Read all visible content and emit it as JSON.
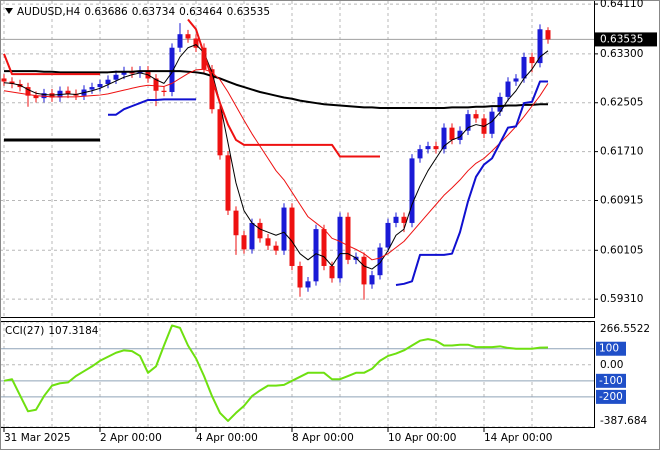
{
  "chart_data": {
    "type": "candlestick",
    "title": "AUDUSD,H4",
    "categories": [
      "31 Mar 2025",
      null,
      null,
      null,
      null,
      null,
      null,
      null,
      null,
      null,
      null,
      null,
      "2 Apr 00:00",
      null,
      null,
      null,
      null,
      null,
      null,
      null,
      null,
      null,
      null,
      null,
      "4 Apr 00:00",
      null,
      null,
      null,
      null,
      null,
      null,
      null,
      null,
      null,
      null,
      null,
      "8 Apr 00:00",
      null,
      null,
      null,
      null,
      null,
      null,
      null,
      null,
      null,
      null,
      null,
      "10 Apr 00:00",
      null,
      null,
      null,
      null,
      null,
      null,
      null,
      null,
      null,
      null,
      null,
      "14 Apr 00:00",
      null,
      null,
      null,
      null,
      null,
      null,
      null,
      null
    ],
    "open": [
      0.629,
      0.6285,
      0.6281,
      0.6276,
      0.6262,
      0.6258,
      0.6266,
      0.6259,
      0.627,
      0.6265,
      0.6262,
      0.6272,
      0.6276,
      0.6281,
      0.6288,
      0.6296,
      0.6302,
      0.6298,
      0.6303,
      0.629,
      0.627,
      0.6268,
      0.634,
      0.6362,
      0.6355,
      0.634,
      0.6305,
      0.624,
      0.6165,
      0.6075,
      0.6035,
      0.6012,
      0.6055,
      0.603,
      0.6018,
      0.601,
      0.608,
      0.5985,
      0.595,
      0.596,
      0.6045,
      0.5985,
      0.5965,
      0.6065,
      0.5995,
      0.6,
      0.5955,
      0.597,
      0.6015,
      0.6055,
      0.6065,
      0.6055,
      0.616,
      0.6175,
      0.618,
      0.6175,
      0.621,
      0.619,
      0.6205,
      0.6232,
      0.6225,
      0.62,
      0.6236,
      0.626,
      0.6285,
      0.629,
      0.6325,
      0.6315,
      0.63686
    ],
    "high": [
      0.6297,
      0.6292,
      0.6288,
      0.6283,
      0.6269,
      0.6273,
      0.6273,
      0.6277,
      0.6277,
      0.6272,
      0.6279,
      0.6283,
      0.6288,
      0.6295,
      0.6303,
      0.6309,
      0.6309,
      0.631,
      0.631,
      0.6297,
      0.6277,
      0.6347,
      0.638,
      0.6369,
      0.6362,
      0.6347,
      0.6312,
      0.6247,
      0.6172,
      0.6082,
      0.6042,
      0.6062,
      0.6062,
      0.6037,
      0.6025,
      0.6087,
      0.6087,
      0.5992,
      0.5967,
      0.6052,
      0.6052,
      0.5992,
      0.6072,
      0.6072,
      0.6007,
      0.6007,
      0.5977,
      0.6022,
      0.6062,
      0.6072,
      0.6072,
      0.6167,
      0.6182,
      0.6187,
      0.6187,
      0.6217,
      0.6217,
      0.6212,
      0.6239,
      0.6239,
      0.6232,
      0.6243,
      0.6267,
      0.6292,
      0.6297,
      0.6332,
      0.6332,
      0.6378,
      0.63734
    ],
    "low": [
      0.6278,
      0.6274,
      0.6269,
      0.6244,
      0.6251,
      0.6251,
      0.6252,
      0.6252,
      0.6258,
      0.6255,
      0.6255,
      0.6265,
      0.6269,
      0.6274,
      0.6281,
      0.6289,
      0.6291,
      0.6291,
      0.6283,
      0.6245,
      0.6261,
      0.6261,
      0.6333,
      0.6348,
      0.6333,
      0.6298,
      0.6233,
      0.6158,
      0.6068,
      0.6003,
      0.6005,
      0.6005,
      0.6023,
      0.6011,
      0.6003,
      0.6003,
      0.5978,
      0.5935,
      0.5943,
      0.5953,
      0.5978,
      0.5958,
      0.5958,
      0.5988,
      0.5988,
      0.593,
      0.5948,
      0.5963,
      0.6008,
      0.6048,
      0.604,
      0.6048,
      0.6153,
      0.6168,
      0.6168,
      0.6168,
      0.6183,
      0.6183,
      0.6198,
      0.6218,
      0.6193,
      0.6193,
      0.6229,
      0.6253,
      0.6278,
      0.6283,
      0.63,
      0.6308,
      0.63464
    ],
    "close": [
      0.6285,
      0.6281,
      0.6276,
      0.6262,
      0.6258,
      0.6266,
      0.6259,
      0.627,
      0.6265,
      0.6262,
      0.6272,
      0.6276,
      0.6281,
      0.6288,
      0.6296,
      0.6302,
      0.6298,
      0.6303,
      0.629,
      0.627,
      0.6268,
      0.634,
      0.6362,
      0.6355,
      0.634,
      0.6305,
      0.624,
      0.6165,
      0.6075,
      0.6035,
      0.6012,
      0.6055,
      0.603,
      0.6018,
      0.601,
      0.608,
      0.5985,
      0.595,
      0.596,
      0.6045,
      0.5985,
      0.5965,
      0.6065,
      0.5995,
      0.6,
      0.5955,
      0.597,
      0.6015,
      0.6055,
      0.6065,
      0.6055,
      0.616,
      0.6175,
      0.618,
      0.6175,
      0.621,
      0.619,
      0.6205,
      0.6232,
      0.6225,
      0.62,
      0.6236,
      0.626,
      0.6285,
      0.629,
      0.6325,
      0.6315,
      0.637,
      0.63535
    ],
    "up_color": "#1a1ad6",
    "down_color": "#ee1111",
    "ylim": [
      0.5902,
      0.6416
    ],
    "yticks": [
      {
        "value": 0.6411,
        "label": "0.64110"
      },
      {
        "value": 0.633,
        "label": "0.63300"
      },
      {
        "value": 0.62505,
        "label": "0.62505"
      },
      {
        "value": 0.6171,
        "label": "0.61710"
      },
      {
        "value": 0.60915,
        "label": "0.60915"
      },
      {
        "value": 0.60105,
        "label": "0.60105"
      },
      {
        "value": 0.5931,
        "label": "0.59310"
      }
    ],
    "grid": true,
    "series": [
      {
        "color": "#000000",
        "style": "thick",
        "values": [
          0.6302,
          0.6302,
          0.6302,
          0.6302,
          0.6302,
          0.6301,
          0.6301,
          0.63,
          0.63,
          0.63,
          0.63,
          0.63,
          0.63,
          0.63,
          0.6301,
          0.6301,
          0.6301,
          0.6302,
          0.6302,
          0.6302,
          0.6302,
          0.6302,
          0.6302,
          0.6301,
          0.63,
          0.6298,
          0.6294,
          0.629,
          0.6285,
          0.628,
          0.6276,
          0.6272,
          0.6268,
          0.6265,
          0.6262,
          0.6259,
          0.6257,
          0.6254,
          0.6252,
          0.625,
          0.6248,
          0.6247,
          0.6246,
          0.6245,
          0.6244,
          0.6243,
          0.6243,
          0.6242,
          0.6242,
          0.6242,
          0.6242,
          0.6242,
          0.6242,
          0.6242,
          0.6242,
          0.6242,
          0.6243,
          0.6243,
          0.6243,
          0.6244,
          0.6244,
          0.6245,
          0.6245,
          0.6246,
          0.6246,
          0.6247,
          0.6247,
          0.6248,
          0.6248
        ]
      },
      {
        "color": "#000000",
        "style": "thin",
        "values": [
          0.6283,
          0.6282,
          0.6279,
          0.6272,
          0.6266,
          0.6264,
          0.6263,
          0.6264,
          0.6265,
          0.6264,
          0.6267,
          0.627,
          0.6274,
          0.628,
          0.6286,
          0.6292,
          0.6296,
          0.6299,
          0.6296,
          0.6288,
          0.6282,
          0.63,
          0.6325,
          0.634,
          0.6345,
          0.6332,
          0.63,
          0.625,
          0.6185,
          0.612,
          0.6075,
          0.6055,
          0.6045,
          0.604,
          0.6035,
          0.604,
          0.6025,
          0.6005,
          0.5995,
          0.6005,
          0.6,
          0.5985,
          0.6005,
          0.6005,
          0.5998,
          0.5985,
          0.598,
          0.599,
          0.601,
          0.6035,
          0.6045,
          0.6085,
          0.6115,
          0.614,
          0.616,
          0.618,
          0.619,
          0.6195,
          0.621,
          0.6215,
          0.6212,
          0.622,
          0.6235,
          0.6255,
          0.627,
          0.629,
          0.6305,
          0.6325,
          0.6335
        ]
      },
      {
        "color": "#ee1111",
        "style": "thin",
        "values": [
          0.627,
          0.6268,
          0.6266,
          0.6264,
          0.6262,
          0.6261,
          0.626,
          0.626,
          0.626,
          0.626,
          0.6261,
          0.6262,
          0.6263,
          0.6265,
          0.6268,
          0.6271,
          0.6274,
          0.6277,
          0.6279,
          0.6278,
          0.6277,
          0.6282,
          0.629,
          0.6298,
          0.6304,
          0.6305,
          0.63,
          0.6288,
          0.6268,
          0.6245,
          0.6222,
          0.62,
          0.618,
          0.616,
          0.614,
          0.6125,
          0.6105,
          0.6085,
          0.6065,
          0.6055,
          0.6045,
          0.603,
          0.6025,
          0.6018,
          0.6012,
          0.6005,
          0.5995,
          0.5998,
          0.6005,
          0.6015,
          0.6025,
          0.604,
          0.6055,
          0.607,
          0.6085,
          0.61,
          0.6112,
          0.6125,
          0.614,
          0.6152,
          0.616,
          0.6172,
          0.6185,
          0.6198,
          0.6212,
          0.6228,
          0.6245,
          0.6262,
          0.6282
        ]
      },
      {
        "color": "#ee1111",
        "style": "thick",
        "values": [
          0.633,
          0.6297,
          0.6297,
          0.6297,
          0.6297,
          0.6297,
          0.6297,
          0.6297,
          0.6297,
          0.6297,
          0.6297,
          0.6297,
          0.6297,
          null,
          null,
          null,
          null,
          null,
          null,
          null,
          null,
          null,
          null,
          0.6386,
          0.637,
          0.633,
          0.629,
          0.625,
          0.6215,
          0.619,
          0.6182,
          0.6182,
          0.6182,
          0.6182,
          0.6182,
          0.6182,
          0.6182,
          0.6182,
          0.6182,
          0.6182,
          0.6182,
          0.6182,
          0.6163,
          0.6163,
          0.6163,
          0.6163,
          0.6163,
          0.6163,
          null,
          null,
          null,
          null,
          null,
          null,
          null,
          null,
          null,
          null,
          null,
          null,
          null,
          null,
          null,
          null,
          null,
          null,
          null,
          null,
          null
        ]
      },
      {
        "color": "#1010d0",
        "style": "thick",
        "values": [
          null,
          null,
          null,
          null,
          null,
          null,
          null,
          null,
          null,
          null,
          null,
          null,
          null,
          0.6231,
          0.6231,
          0.624,
          0.6245,
          0.625,
          0.6255,
          0.6255,
          0.6256,
          0.6256,
          0.6256,
          0.6256,
          0.6256,
          null,
          null,
          null,
          null,
          null,
          null,
          null,
          null,
          null,
          null,
          null,
          null,
          null,
          null,
          null,
          null,
          null,
          null,
          null,
          null,
          null,
          null,
          null,
          null,
          0.5954,
          0.5956,
          0.596,
          0.6003,
          0.6003,
          0.6003,
          0.6003,
          0.6005,
          0.604,
          0.609,
          0.613,
          0.615,
          0.616,
          0.6185,
          0.621,
          0.6212,
          0.625,
          0.6252,
          0.6285,
          0.6285
        ]
      },
      {
        "color": "#000000",
        "style": "heavy",
        "values": [
          0.619,
          0.619,
          0.619,
          0.619,
          0.619,
          0.619,
          0.619,
          0.619,
          0.619,
          0.619,
          0.619,
          0.619,
          0.619,
          null,
          null,
          null,
          null,
          null,
          null,
          null,
          null,
          null,
          null,
          null,
          null,
          null,
          null,
          null,
          null,
          null,
          null,
          null,
          null,
          null,
          null,
          null,
          null,
          null,
          null,
          null,
          null,
          null,
          null,
          null,
          null,
          null,
          null,
          null,
          null,
          null,
          null,
          null,
          null,
          null,
          null,
          null,
          null,
          null,
          null,
          null,
          null,
          null,
          null,
          null,
          null,
          null,
          null,
          null,
          null
        ]
      }
    ],
    "indicator": {
      "type": "line",
      "title": "CCI(27)",
      "color": "#6ee010",
      "values": [
        -100,
        -90,
        -190,
        -290,
        -280,
        -195,
        -130,
        -115,
        -110,
        -70,
        -40,
        -10,
        25,
        50,
        75,
        90,
        85,
        55,
        -50,
        -10,
        120,
        245,
        230,
        120,
        40,
        -70,
        -195,
        -300,
        -350,
        -300,
        -256,
        -195,
        -160,
        -130,
        -130,
        -125,
        -100,
        -75,
        -50,
        -50,
        -50,
        -90,
        -90,
        -70,
        -50,
        -50,
        -25,
        25,
        55,
        70,
        90,
        120,
        150,
        160,
        150,
        120,
        120,
        125,
        125,
        110,
        110,
        110,
        115,
        105,
        100,
        100,
        100,
        107,
        107.3184
      ],
      "ylim": [
        -387.684,
        266.5522
      ],
      "yticks": [
        266.5522,
        {
          "value": 0,
          "label": "0.00"
        },
        -387.684
      ],
      "levels": [
        100,
        -100,
        -200
      ],
      "level_color": "#1f4fc8"
    }
  }
}
